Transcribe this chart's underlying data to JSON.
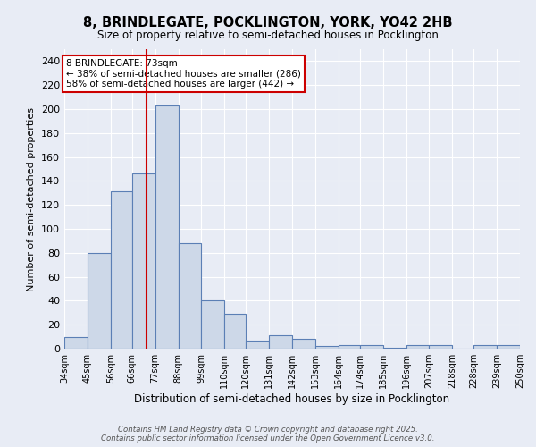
{
  "title": "8, BRINDLEGATE, POCKLINGTON, YORK, YO42 2HB",
  "subtitle": "Size of property relative to semi-detached houses in Pocklington",
  "xlabel": "Distribution of semi-detached houses by size in Pocklington",
  "ylabel": "Number of semi-detached properties",
  "bins": [
    34,
    45,
    56,
    66,
    77,
    88,
    99,
    110,
    120,
    131,
    142,
    153,
    164,
    174,
    185,
    196,
    207,
    218,
    228,
    239,
    250
  ],
  "bin_labels": [
    "34sqm",
    "45sqm",
    "56sqm",
    "66sqm",
    "77sqm",
    "88sqm",
    "99sqm",
    "110sqm",
    "120sqm",
    "131sqm",
    "142sqm",
    "153sqm",
    "164sqm",
    "174sqm",
    "185sqm",
    "196sqm",
    "207sqm",
    "218sqm",
    "228sqm",
    "239sqm",
    "250sqm"
  ],
  "counts": [
    10,
    80,
    131,
    146,
    203,
    88,
    40,
    29,
    7,
    11,
    8,
    2,
    3,
    3,
    1,
    3,
    3,
    0,
    3,
    3
  ],
  "bar_color": "#cdd8e8",
  "bar_edge_color": "#5b7fb5",
  "property_size": 73,
  "vline_color": "#cc0000",
  "annotation_text": "8 BRINDLEGATE: 73sqm\n← 38% of semi-detached houses are smaller (286)\n58% of semi-detached houses are larger (442) →",
  "annotation_box_color": "#ffffff",
  "annotation_box_edgecolor": "#cc0000",
  "ylim": [
    0,
    250
  ],
  "background_color": "#e8ecf5",
  "footer": "Contains HM Land Registry data © Crown copyright and database right 2025.\nContains public sector information licensed under the Open Government Licence v3.0."
}
